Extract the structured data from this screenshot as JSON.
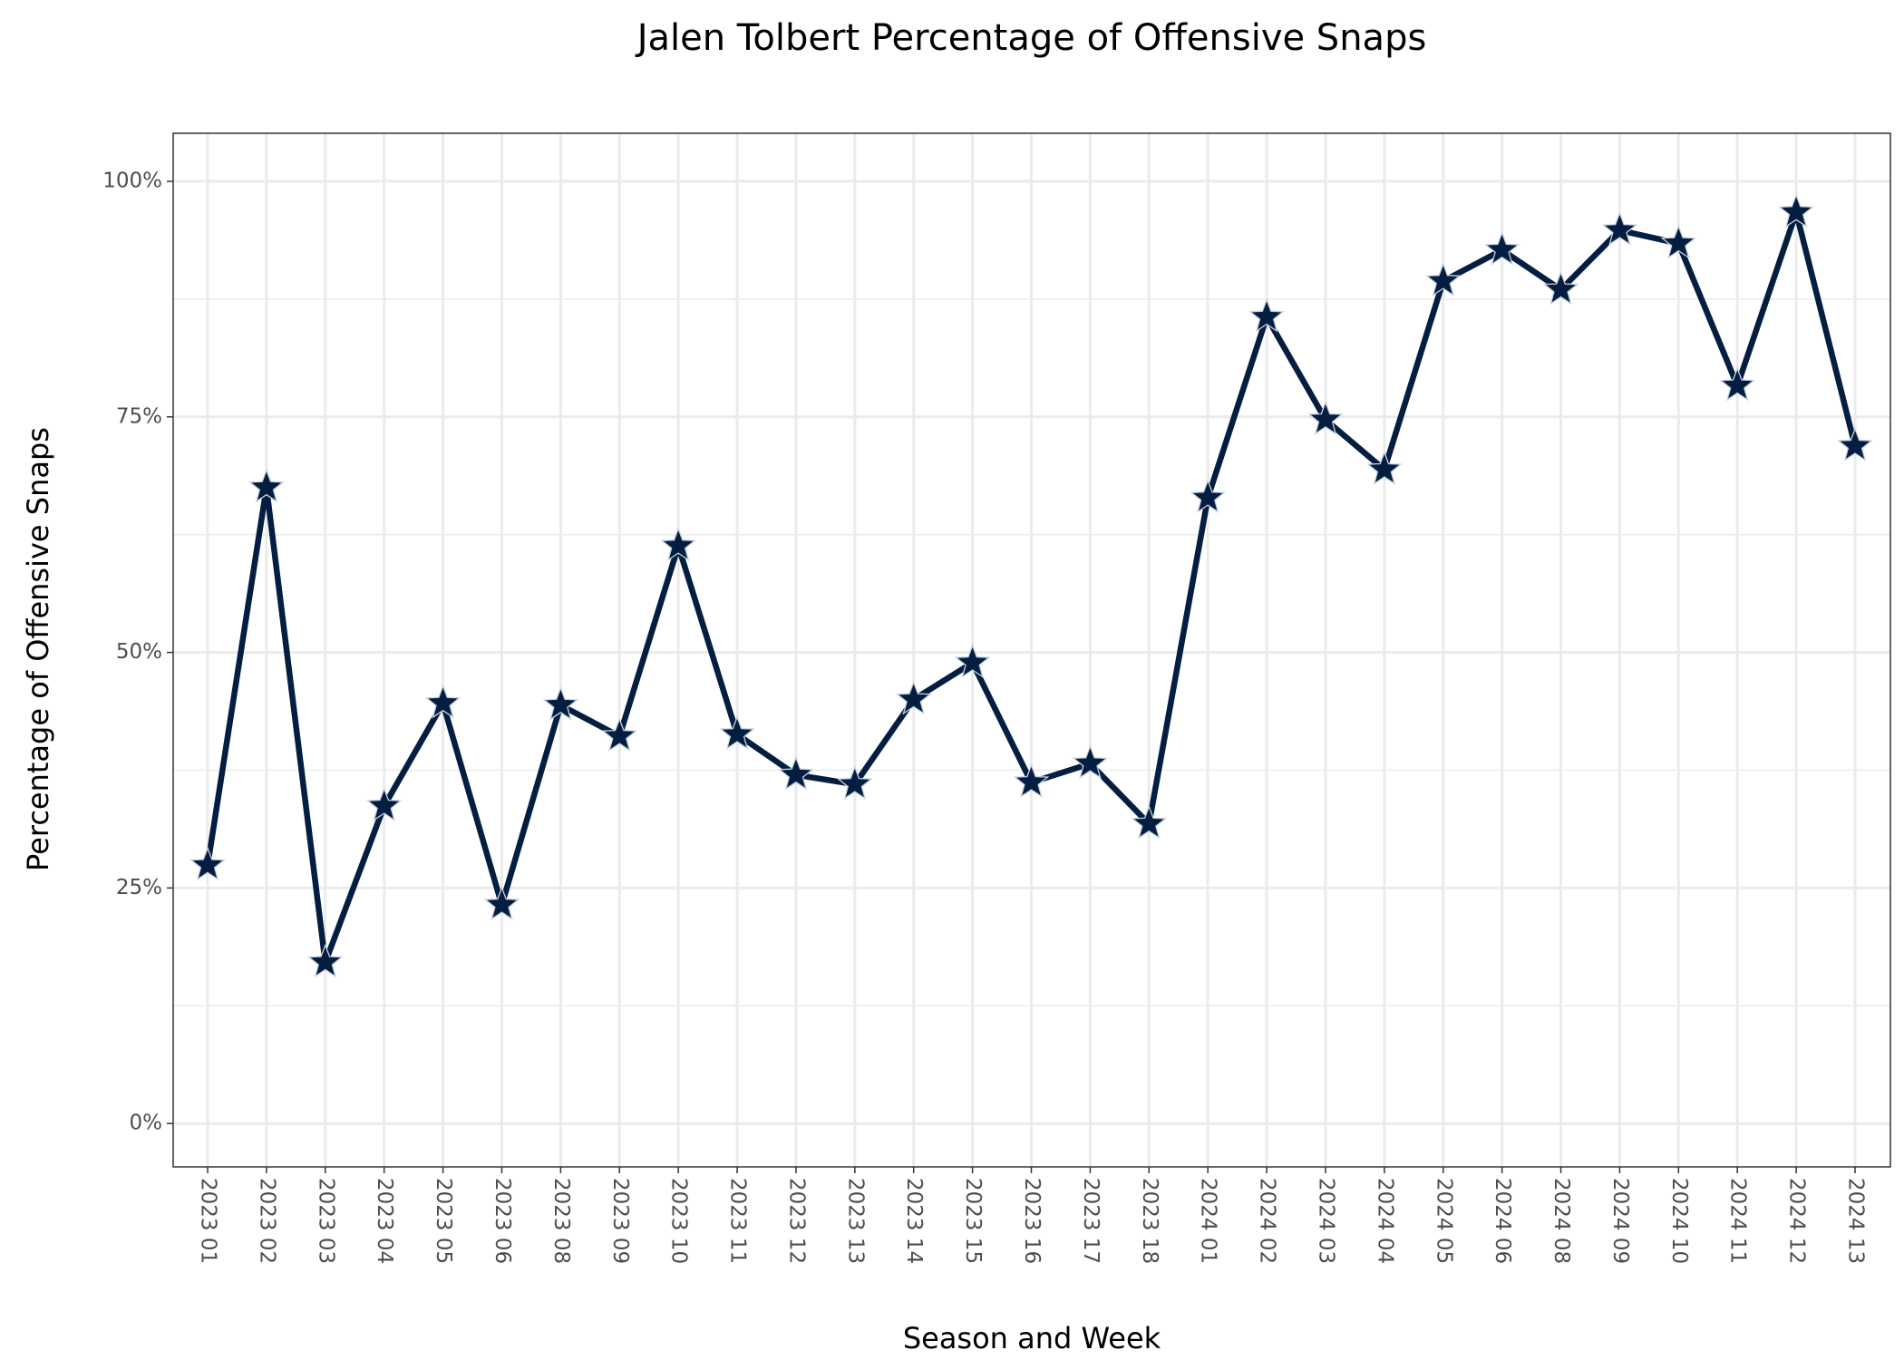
{
  "chart_data": {
    "type": "line",
    "title": "Jalen Tolbert Percentage of Offensive Snaps",
    "x_label": "Season and Week",
    "y_label": "Percentage of Offensive Snaps",
    "categories": [
      "2023 01",
      "2023 02",
      "2023 03",
      "2023 04",
      "2023 05",
      "2023 06",
      "2023 08",
      "2023 09",
      "2023 10",
      "2023 11",
      "2023 12",
      "2023 13",
      "2023 14",
      "2023 15",
      "2023 16",
      "2023 17",
      "2023 18",
      "2024 01",
      "2024 02",
      "2024 03",
      "2024 04",
      "2024 05",
      "2024 06",
      "2024 08",
      "2024 09",
      "2024 10",
      "2024 11",
      "2024 12",
      "2024 13"
    ],
    "values": [
      27.4,
      67.5,
      17.1,
      33.7,
      44.6,
      23.2,
      44.4,
      41.1,
      61.3,
      41.3,
      37.0,
      36.0,
      45.0,
      48.9,
      36.2,
      38.2,
      31.8,
      66.4,
      85.6,
      74.7,
      69.4,
      89.4,
      92.7,
      88.5,
      94.8,
      93.4,
      78.3,
      96.7,
      71.9
    ],
    "color": "#041E42",
    "marker": "star",
    "ylim": [
      -4.6,
      105.1
    ],
    "yticks": [
      {
        "value": 0,
        "label": "0%"
      },
      {
        "value": 25,
        "label": "25%"
      },
      {
        "value": 50,
        "label": "50%"
      },
      {
        "value": 75,
        "label": "75%"
      },
      {
        "value": 100,
        "label": "100%"
      }
    ],
    "minor_yticks": [
      12.5,
      37.5,
      62.5,
      87.5
    ],
    "grid": true
  }
}
